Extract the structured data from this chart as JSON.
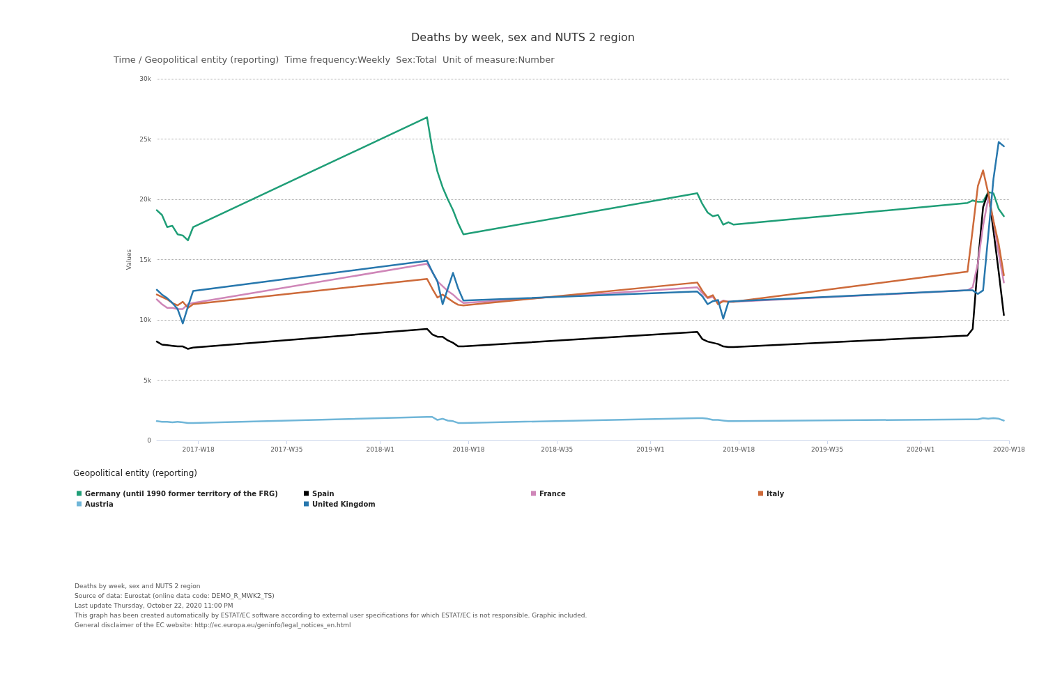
{
  "chart_data": {
    "type": "line",
    "title": "Deaths by week, sex and NUTS 2 region",
    "subtitle": "Time / Geopolitical entity (reporting)  Time frequency:Weekly  Sex:Total  Unit of measure:Number",
    "ylabel": "Values",
    "legend_title": "Geopolitical entity (reporting)",
    "categories": [
      null,
      null,
      null,
      null,
      null,
      null,
      null,
      null,
      "2017-W18",
      null,
      null,
      null,
      null,
      null,
      null,
      null,
      null,
      null,
      null,
      null,
      null,
      null,
      null,
      null,
      null,
      "2017-W35",
      null,
      null,
      null,
      null,
      null,
      null,
      null,
      null,
      null,
      null,
      null,
      null,
      null,
      null,
      null,
      null,
      null,
      "2018-W1",
      null,
      null,
      null,
      null,
      null,
      null,
      null,
      null,
      null,
      null,
      null,
      null,
      null,
      null,
      null,
      null,
      "2018-W18",
      null,
      null,
      null,
      null,
      null,
      null,
      null,
      null,
      null,
      null,
      null,
      null,
      null,
      null,
      null,
      null,
      "2018-W35",
      null,
      null,
      null,
      null,
      null,
      null,
      null,
      null,
      null,
      null,
      null,
      null,
      null,
      null,
      null,
      null,
      null,
      "2019-W1",
      null,
      null,
      null,
      null,
      null,
      null,
      null,
      null,
      null,
      null,
      null,
      null,
      null,
      null,
      null,
      null,
      "2019-W18",
      null,
      null,
      null,
      null,
      null,
      null,
      null,
      null,
      null,
      null,
      null,
      null,
      null,
      null,
      null,
      null,
      "2019-W35",
      null,
      null,
      null,
      null,
      null,
      null,
      null,
      null,
      null,
      null,
      null,
      null,
      null,
      null,
      null,
      null,
      null,
      "2020-W1",
      null,
      null,
      null,
      null,
      null,
      null,
      null,
      null,
      null,
      null,
      null,
      null,
      null,
      null,
      null,
      null,
      "2020-W18"
    ],
    "series": [
      {
        "name": "Germany (until 1990 former territory of the FRG)",
        "color": "#1f9e77",
        "values": [
          19100,
          18700,
          17700,
          17800,
          17100,
          17000,
          16600,
          17700,
          null,
          null,
          null,
          null,
          null,
          null,
          null,
          null,
          null,
          null,
          null,
          null,
          null,
          null,
          null,
          null,
          null,
          null,
          null,
          null,
          null,
          null,
          null,
          null,
          null,
          null,
          null,
          null,
          null,
          null,
          null,
          null,
          null,
          null,
          null,
          null,
          null,
          null,
          null,
          null,
          null,
          null,
          null,
          null,
          26800,
          24200,
          22300,
          21000,
          20000,
          19100,
          18000,
          17100,
          null,
          null,
          null,
          null,
          null,
          null,
          null,
          null,
          null,
          null,
          null,
          null,
          null,
          null,
          null,
          null,
          null,
          null,
          null,
          null,
          null,
          null,
          null,
          null,
          null,
          null,
          null,
          null,
          null,
          null,
          null,
          null,
          null,
          null,
          null,
          null,
          null,
          null,
          null,
          null,
          null,
          null,
          null,
          null,
          20500,
          19600,
          18900,
          18600,
          18700,
          17900,
          18100,
          17900,
          null,
          null,
          null,
          null,
          null,
          null,
          null,
          null,
          null,
          null,
          null,
          null,
          null,
          null,
          null,
          null,
          null,
          null,
          null,
          null,
          null,
          null,
          null,
          null,
          null,
          null,
          null,
          null,
          null,
          null,
          null,
          null,
          null,
          null,
          null,
          null,
          null,
          null,
          null,
          null,
          null,
          null,
          null,
          null,
          19700,
          19900,
          19800,
          19800,
          20600,
          20500,
          19200,
          18600,
          null
        ]
      },
      {
        "name": "Spain",
        "color": "#000000",
        "values": [
          8200,
          7950,
          7900,
          7850,
          7800,
          7800,
          7600,
          7700,
          null,
          null,
          null,
          null,
          null,
          null,
          null,
          null,
          null,
          null,
          null,
          null,
          null,
          null,
          null,
          null,
          null,
          null,
          null,
          null,
          null,
          null,
          null,
          null,
          null,
          null,
          null,
          null,
          null,
          null,
          null,
          null,
          null,
          null,
          null,
          null,
          null,
          null,
          null,
          null,
          null,
          null,
          null,
          null,
          9250,
          8800,
          8600,
          8600,
          8300,
          8100,
          7800,
          7800,
          null,
          null,
          null,
          null,
          null,
          null,
          null,
          null,
          null,
          null,
          null,
          null,
          null,
          null,
          null,
          null,
          null,
          null,
          null,
          null,
          null,
          null,
          null,
          null,
          null,
          null,
          null,
          null,
          null,
          null,
          null,
          null,
          null,
          null,
          null,
          null,
          null,
          null,
          null,
          null,
          null,
          null,
          null,
          null,
          9000,
          8400,
          8200,
          8100,
          8000,
          7800,
          7750,
          7750,
          null,
          null,
          null,
          null,
          null,
          null,
          null,
          null,
          null,
          null,
          null,
          null,
          null,
          null,
          null,
          null,
          null,
          null,
          null,
          null,
          null,
          null,
          null,
          null,
          null,
          null,
          null,
          null,
          null,
          null,
          null,
          null,
          null,
          null,
          null,
          null,
          null,
          null,
          null,
          null,
          null,
          null,
          null,
          null,
          8700,
          9250,
          14700,
          19350,
          20600,
          17400,
          14000,
          10400,
          null
        ]
      },
      {
        "name": "France",
        "color": "#cf86b8",
        "values": [
          11700,
          11300,
          11000,
          11000,
          10900,
          10900,
          11300,
          11400,
          null,
          null,
          null,
          null,
          null,
          null,
          null,
          null,
          null,
          null,
          null,
          null,
          null,
          null,
          null,
          null,
          null,
          null,
          null,
          null,
          null,
          null,
          null,
          null,
          null,
          null,
          null,
          null,
          null,
          null,
          null,
          null,
          null,
          null,
          null,
          null,
          null,
          null,
          null,
          null,
          null,
          null,
          null,
          null,
          14650,
          14000,
          13200,
          12800,
          12400,
          12100,
          11700,
          11400,
          null,
          null,
          null,
          null,
          null,
          null,
          null,
          null,
          null,
          null,
          null,
          null,
          null,
          null,
          null,
          null,
          null,
          null,
          null,
          null,
          null,
          null,
          null,
          null,
          null,
          null,
          null,
          null,
          null,
          null,
          null,
          null,
          null,
          null,
          null,
          null,
          null,
          null,
          null,
          null,
          null,
          null,
          null,
          null,
          12700,
          12200,
          11800,
          11900,
          11400,
          11600,
          11500,
          11500,
          null,
          null,
          null,
          null,
          null,
          null,
          null,
          null,
          null,
          null,
          null,
          null,
          null,
          null,
          null,
          null,
          null,
          null,
          null,
          null,
          null,
          null,
          null,
          null,
          null,
          null,
          null,
          null,
          null,
          null,
          null,
          null,
          null,
          null,
          null,
          null,
          null,
          null,
          null,
          null,
          null,
          null,
          null,
          null,
          12450,
          12700,
          14700,
          17800,
          20100,
          18200,
          15500,
          13100,
          null
        ]
      },
      {
        "name": "Italy",
        "color": "#cd6a3a",
        "values": [
          12100,
          11900,
          11700,
          11400,
          11200,
          11500,
          11000,
          11300,
          null,
          null,
          null,
          null,
          null,
          null,
          null,
          null,
          null,
          null,
          null,
          null,
          null,
          null,
          null,
          null,
          null,
          null,
          null,
          null,
          null,
          null,
          null,
          null,
          null,
          null,
          null,
          null,
          null,
          null,
          null,
          null,
          null,
          null,
          null,
          null,
          null,
          null,
          null,
          null,
          null,
          null,
          null,
          null,
          13400,
          12600,
          11850,
          12100,
          11800,
          11500,
          11250,
          11200,
          null,
          null,
          null,
          null,
          null,
          null,
          null,
          null,
          null,
          null,
          null,
          null,
          null,
          null,
          null,
          null,
          null,
          null,
          null,
          null,
          null,
          null,
          null,
          null,
          null,
          null,
          null,
          null,
          null,
          null,
          null,
          null,
          null,
          null,
          null,
          null,
          null,
          null,
          null,
          null,
          null,
          null,
          null,
          null,
          13100,
          12400,
          11850,
          12050,
          11300,
          11550,
          11500,
          11500,
          null,
          null,
          null,
          null,
          null,
          null,
          null,
          null,
          null,
          null,
          null,
          null,
          null,
          null,
          null,
          null,
          null,
          null,
          null,
          null,
          null,
          null,
          null,
          null,
          null,
          null,
          null,
          null,
          null,
          null,
          null,
          null,
          null,
          null,
          null,
          null,
          null,
          null,
          null,
          null,
          null,
          null,
          null,
          null,
          14000,
          17500,
          21100,
          22400,
          20500,
          18200,
          16300,
          13700,
          null
        ]
      },
      {
        "name": "Austria",
        "color": "#70b6d8",
        "values": [
          1600,
          1550,
          1550,
          1500,
          1550,
          1500,
          1450,
          1450,
          null,
          null,
          null,
          null,
          null,
          null,
          null,
          null,
          null,
          null,
          null,
          null,
          null,
          null,
          null,
          null,
          null,
          null,
          null,
          null,
          null,
          null,
          null,
          null,
          null,
          null,
          null,
          null,
          null,
          null,
          null,
          null,
          null,
          null,
          null,
          null,
          null,
          null,
          null,
          null,
          null,
          null,
          null,
          null,
          1950,
          1950,
          1700,
          1800,
          1650,
          1600,
          1450,
          1450,
          null,
          null,
          null,
          null,
          null,
          null,
          null,
          null,
          null,
          null,
          null,
          null,
          null,
          null,
          null,
          null,
          null,
          null,
          null,
          null,
          null,
          null,
          null,
          null,
          null,
          null,
          null,
          null,
          null,
          null,
          null,
          null,
          null,
          null,
          null,
          null,
          null,
          null,
          null,
          null,
          null,
          null,
          null,
          null,
          1850,
          1850,
          1800,
          1700,
          1700,
          1650,
          1600,
          1600,
          null,
          null,
          null,
          null,
          null,
          null,
          null,
          null,
          null,
          null,
          null,
          null,
          null,
          null,
          null,
          null,
          null,
          null,
          null,
          null,
          null,
          null,
          null,
          null,
          null,
          null,
          null,
          null,
          null,
          null,
          null,
          null,
          null,
          null,
          null,
          null,
          null,
          null,
          null,
          null,
          null,
          null,
          null,
          null,
          1750,
          1750,
          1750,
          1850,
          1800,
          1850,
          1800,
          1650,
          null
        ]
      },
      {
        "name": "United Kingdom",
        "color": "#2777ad",
        "values": [
          12500,
          12100,
          11800,
          11400,
          10900,
          9700,
          11100,
          12400,
          null,
          null,
          null,
          null,
          null,
          null,
          null,
          null,
          null,
          null,
          null,
          null,
          null,
          null,
          null,
          null,
          null,
          null,
          null,
          null,
          null,
          null,
          null,
          null,
          null,
          null,
          null,
          null,
          null,
          null,
          null,
          null,
          null,
          null,
          null,
          null,
          null,
          null,
          null,
          null,
          null,
          null,
          null,
          null,
          14900,
          14000,
          13200,
          11300,
          12600,
          13900,
          12600,
          11600,
          null,
          null,
          null,
          null,
          null,
          null,
          null,
          null,
          null,
          null,
          null,
          null,
          null,
          null,
          null,
          null,
          null,
          null,
          null,
          null,
          null,
          null,
          null,
          null,
          null,
          null,
          null,
          null,
          null,
          null,
          null,
          null,
          null,
          null,
          null,
          null,
          null,
          null,
          null,
          null,
          null,
          null,
          null,
          null,
          12350,
          11950,
          11300,
          11550,
          11650,
          10100,
          11500,
          11550,
          null,
          null,
          null,
          null,
          null,
          null,
          null,
          null,
          null,
          null,
          null,
          null,
          null,
          null,
          null,
          null,
          null,
          null,
          null,
          null,
          null,
          null,
          null,
          null,
          null,
          null,
          null,
          null,
          null,
          null,
          null,
          null,
          null,
          null,
          null,
          null,
          null,
          null,
          null,
          null,
          null,
          null,
          null,
          null,
          12450,
          12450,
          12150,
          12450,
          17050,
          21700,
          24750,
          24400,
          null
        ]
      }
    ],
    "ylim": [
      0,
      30000
    ],
    "yticks": [
      0,
      {
        "value": 5000,
        "label": "5k"
      },
      {
        "value": 10000,
        "label": "10k"
      },
      {
        "value": 15000,
        "label": "15k"
      },
      {
        "value": 20000,
        "label": "20k"
      },
      {
        "value": 25000,
        "label": "25k"
      },
      {
        "value": 30000,
        "label": "30k"
      }
    ],
    "grid": "y",
    "legend": "bottom",
    "marker": "none",
    "line_style": "solid",
    "annotations": [
      "Deaths by week, sex and NUTS 2 region",
      "Source of data: Eurostat (online data code: DEMO_R_MWK2_TS)",
      "Last update Thursday, October 22, 2020 11:00 PM",
      "This graph has been created automatically by ESTAT/EC software according to external user specifications for which ESTAT/EC is not responsible. Graphic included.",
      "General disclaimer of the EC website: http://ec.europa.eu/geninfo/legal_notices_en.html"
    ]
  }
}
